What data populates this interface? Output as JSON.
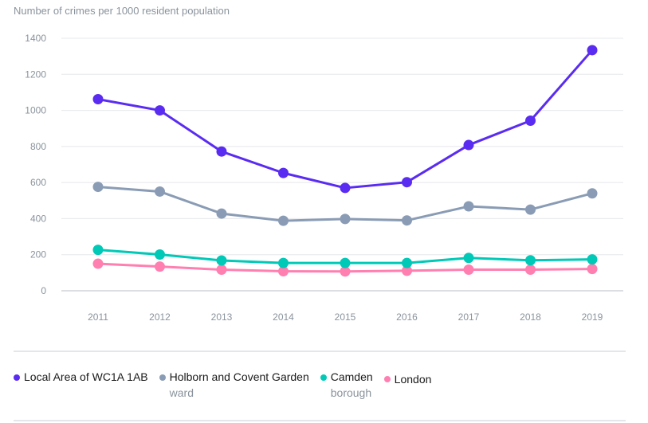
{
  "chart_data": {
    "type": "line",
    "ylabel": "Number of crimes per 1000 resident population",
    "xlabel": "",
    "x": [
      "2011",
      "2012",
      "2013",
      "2014",
      "2015",
      "2016",
      "2017",
      "2018",
      "2019"
    ],
    "yticks": [
      "0",
      "200",
      "400",
      "600",
      "800",
      "1000",
      "1200",
      "1400"
    ],
    "ylim": [
      0,
      1400
    ],
    "grid": true,
    "legend_position": "bottom",
    "series": [
      {
        "name": "Local Area of WC1A 1AB",
        "sub": "",
        "color": "#5a2cf2",
        "values": [
          1062,
          1000,
          772,
          653,
          570,
          602,
          808,
          943,
          1334
        ]
      },
      {
        "name": "Holborn and Covent Garden",
        "sub": "ward",
        "color": "#8a9cb5",
        "values": [
          576,
          550,
          428,
          388,
          398,
          390,
          468,
          450,
          540
        ]
      },
      {
        "name": "Camden",
        "sub": "borough",
        "color": "#00c9b7",
        "values": [
          227,
          201,
          168,
          154,
          154,
          154,
          182,
          169,
          174
        ]
      },
      {
        "name": "London",
        "sub": "",
        "color": "#ff7fb0",
        "values": [
          150,
          134,
          117,
          108,
          107,
          111,
          117,
          117,
          121
        ]
      }
    ]
  }
}
